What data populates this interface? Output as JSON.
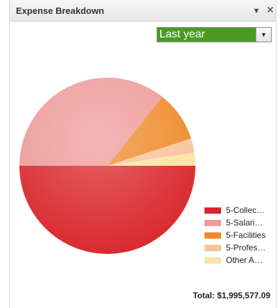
{
  "widget": {
    "title": "Expense Breakdown",
    "menu_icon": "chevron-down-icon",
    "close_icon": "close-icon"
  },
  "period_select": {
    "selected": "Last year",
    "selected_bg": "#4a9a23"
  },
  "chart_data": {
    "type": "pie",
    "slices": [
      {
        "label": "5-Collec…",
        "value": 50.0,
        "color": "#d9262b"
      },
      {
        "label": "5-Salari…",
        "value": 35.7,
        "color": "#ee9a9a"
      },
      {
        "label": "5-Facilities",
        "value": 9.3,
        "color": "#ef8a2a"
      },
      {
        "label": "5-Profes…",
        "value": 2.6,
        "color": "#f7c39c"
      },
      {
        "label": "Other A…",
        "value": 2.4,
        "color": "#fbe49f"
      }
    ]
  },
  "total": {
    "text": "Total: $1,995,577.09"
  }
}
